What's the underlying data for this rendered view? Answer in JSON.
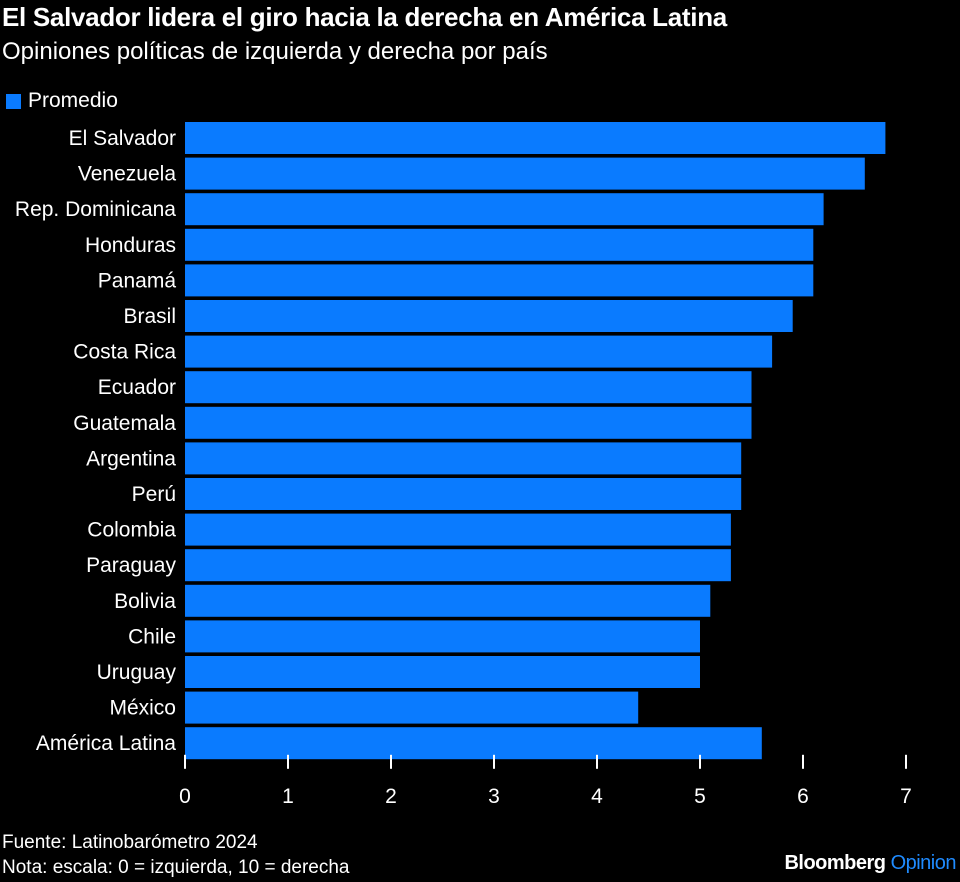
{
  "title": "El Salvador lidera el giro hacia la derecha en América Latina",
  "subtitle": "Opiniones políticas de izquierda y derecha por país",
  "legend": {
    "label": "Promedio"
  },
  "colors": {
    "bar": "#0a7bff",
    "background": "#000000",
    "text": "#ffffff",
    "opinion": "#1f8bff"
  },
  "footer": {
    "source": "Fuente: Latinobarómetro 2024",
    "note": "Nota: escala: 0 = izquierda, 10 = derecha",
    "brand": "Bloomberg",
    "brand_suffix": "Opinion"
  },
  "chart_data": {
    "type": "bar",
    "orientation": "horizontal",
    "title": "El Salvador lidera el giro hacia la derecha en América Latina",
    "subtitle": "Opiniones políticas de izquierda y derecha por país",
    "xlabel": "",
    "ylabel": "",
    "xlim": [
      0,
      7
    ],
    "xticks": [
      0,
      1,
      2,
      3,
      4,
      5,
      6,
      7
    ],
    "grid": false,
    "legend_position": "top-left",
    "categories": [
      "El Salvador",
      "Venezuela",
      "Rep. Dominicana",
      "Honduras",
      "Panamá",
      "Brasil",
      "Costa Rica",
      "Ecuador",
      "Guatemala",
      "Argentina",
      "Perú",
      "Colombia",
      "Paraguay",
      "Bolivia",
      "Chile",
      "Uruguay",
      "México",
      "América Latina"
    ],
    "series": [
      {
        "name": "Promedio",
        "values": [
          6.8,
          6.6,
          6.2,
          6.1,
          6.1,
          5.9,
          5.7,
          5.5,
          5.5,
          5.4,
          5.4,
          5.3,
          5.3,
          5.1,
          5.0,
          5.0,
          4.4,
          5.6
        ]
      }
    ]
  }
}
